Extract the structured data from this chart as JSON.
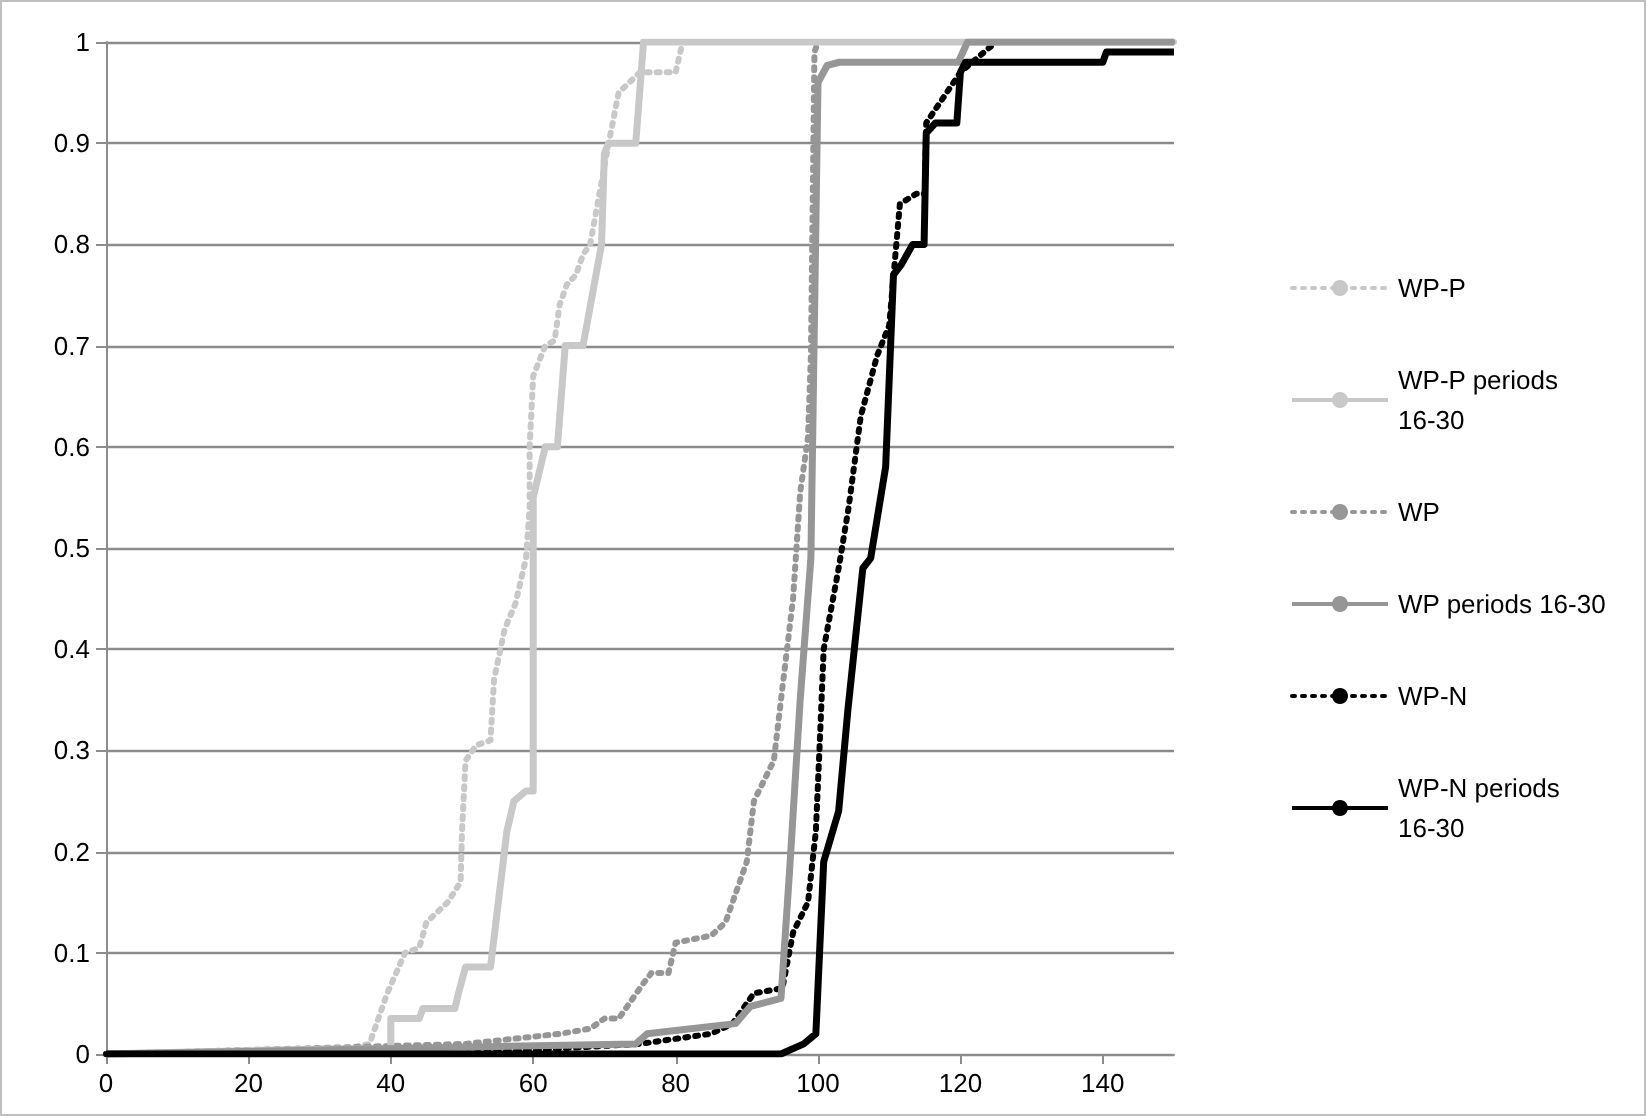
{
  "chart_data": {
    "type": "line",
    "xlim": [
      0,
      150
    ],
    "xticks": [
      0,
      20,
      40,
      60,
      80,
      100,
      120,
      140
    ],
    "ylim": [
      0,
      1
    ],
    "yticks": [
      0,
      0.1,
      0.2,
      0.3,
      0.4,
      0.5,
      0.6,
      0.7,
      0.8,
      0.9,
      1
    ],
    "grid": "y",
    "legend": "right",
    "marker": "none",
    "series": [
      {
        "name": "WP-P",
        "color": "#c8c8c8",
        "line_style": "dotted",
        "x": [
          0,
          30,
          37,
          39.5,
          42,
          44,
          45,
          48,
          49.8,
          50,
          50.5,
          52,
          54,
          54.5,
          56,
          57.5,
          59,
          59.5,
          59.5,
          60,
          61.7,
          63,
          63.7,
          64.7,
          66,
          67,
          68,
          70.6,
          72,
          75,
          80,
          81,
          150
        ],
        "values": [
          0,
          0,
          0.01,
          0.06,
          0.1,
          0.105,
          0.13,
          0.15,
          0.17,
          0.22,
          0.29,
          0.305,
          0.31,
          0.37,
          0.42,
          0.445,
          0.49,
          0.54,
          0.6,
          0.67,
          0.7,
          0.705,
          0.74,
          0.76,
          0.77,
          0.79,
          0.8,
          0.9,
          0.95,
          0.97,
          0.97,
          1,
          1
        ]
      },
      {
        "name": "WP-P periods 16-30",
        "color": "#c8c8c8",
        "line_style": "solid",
        "x": [
          0,
          31,
          40,
          40,
          44,
          44.5,
          49,
          49.5,
          50.5,
          54,
          56.3,
          57.3,
          59,
          60,
          60,
          61.7,
          63.4,
          64.5,
          67,
          68.3,
          69.6,
          70,
          70.6,
          74.4,
          75.5,
          150
        ],
        "values": [
          0,
          0.005,
          0.005,
          0.035,
          0.035,
          0.045,
          0.045,
          0.06,
          0.086,
          0.086,
          0.22,
          0.25,
          0.26,
          0.26,
          0.55,
          0.6,
          0.6,
          0.7,
          0.7,
          0.75,
          0.8,
          0.89,
          0.9,
          0.9,
          1,
          1
        ]
      },
      {
        "name": "WP",
        "color": "#969696",
        "line_style": "dotted",
        "x": [
          0,
          50.6,
          63.8,
          68,
          70,
          72,
          75.5,
          76.6,
          79,
          80,
          85,
          87,
          90,
          91,
          93.8,
          94.8,
          96.5,
          97.5,
          98.6,
          99,
          99.5,
          100,
          150
        ],
        "values": [
          0,
          0.01,
          0.02,
          0.025,
          0.035,
          0.035,
          0.07,
          0.08,
          0.08,
          0.11,
          0.117,
          0.13,
          0.19,
          0.25,
          0.29,
          0.35,
          0.45,
          0.555,
          0.61,
          0.69,
          0.99,
          1,
          1
        ]
      },
      {
        "name": "WP periods 16-30",
        "color": "#969696",
        "line_style": "solid",
        "x": [
          0,
          74.4,
          76,
          88.4,
          90.5,
          94.8,
          96,
          97.5,
          99,
          100,
          101.3,
          103,
          119.7,
          121,
          150
        ],
        "values": [
          0,
          0.01,
          0.02,
          0.03,
          0.047,
          0.055,
          0.18,
          0.35,
          0.49,
          0.96,
          0.977,
          0.98,
          0.98,
          1,
          1
        ]
      },
      {
        "name": "WP-N",
        "color": "#000000",
        "line_style": "dotted",
        "x": [
          0,
          50,
          75,
          85,
          88,
          91,
          95,
          96.5,
          98.6,
          99.7,
          100.2,
          100.8,
          102.9,
          104.3,
          106,
          108.3,
          110,
          111.5,
          113.8,
          115,
          115.2,
          120,
          125,
          150
        ],
        "values": [
          0,
          0,
          0.01,
          0.02,
          0.03,
          0.06,
          0.065,
          0.12,
          0.15,
          0.22,
          0.3,
          0.4,
          0.48,
          0.54,
          0.63,
          0.69,
          0.72,
          0.84,
          0.85,
          0.85,
          0.92,
          0.97,
          1,
          1
        ]
      },
      {
        "name": "WP-N periods 16-30",
        "color": "#000000",
        "line_style": "solid",
        "x": [
          0,
          94.8,
          98,
          99.7,
          100.8,
          102.9,
          104.2,
          106.3,
          107.4,
          109.5,
          110.6,
          111.7,
          113.3,
          114.9,
          115.2,
          116.5,
          119.5,
          120,
          120.7,
          125,
          140,
          140.5,
          150
        ],
        "values": [
          0,
          0,
          0.01,
          0.02,
          0.19,
          0.24,
          0.34,
          0.48,
          0.49,
          0.58,
          0.77,
          0.78,
          0.8,
          0.8,
          0.91,
          0.92,
          0.92,
          0.97,
          0.98,
          0.98,
          0.98,
          0.99,
          0.99
        ]
      }
    ]
  }
}
